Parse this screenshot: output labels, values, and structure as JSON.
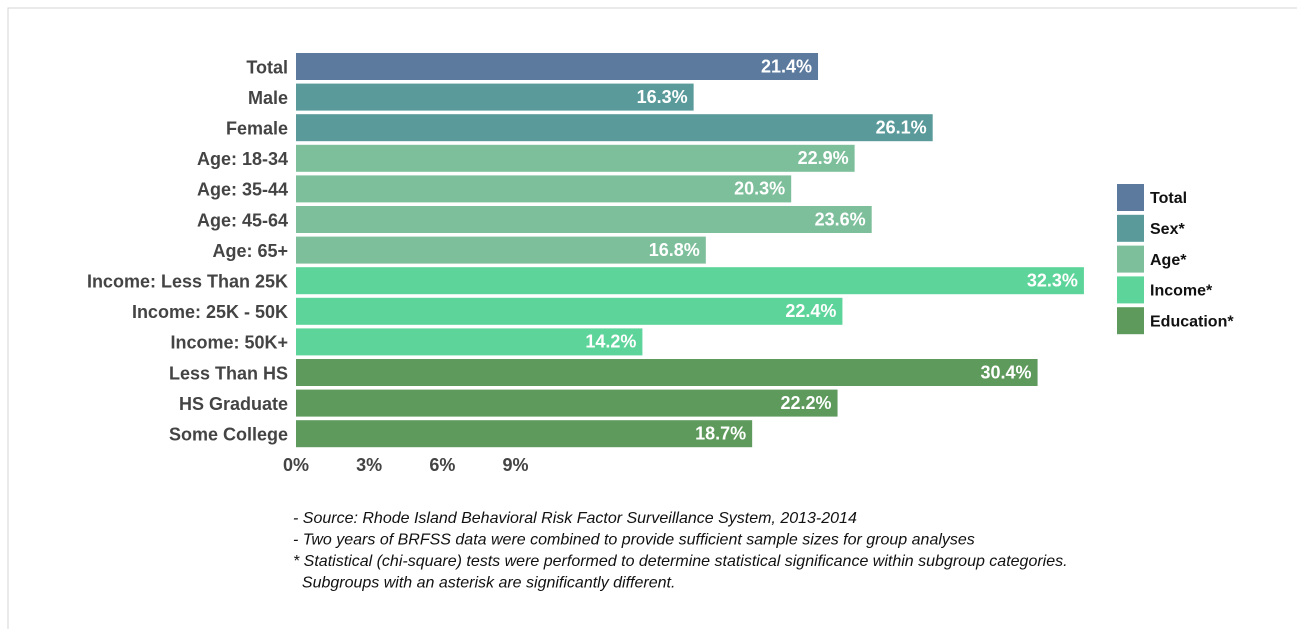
{
  "chart_data": {
    "type": "bar",
    "orientation": "horizontal",
    "categories": [
      "Total",
      "Male",
      "Female",
      "Age: 18-34",
      "Age: 35-44",
      "Age: 45-64",
      "Age: 65+",
      "Income: Less Than 25K",
      "Income: 25K - 50K",
      "Income: 50K+",
      "Less Than HS",
      "HS Graduate",
      "Some College"
    ],
    "series": [
      {
        "name": "Total",
        "color": "#5b7a9e",
        "values": [
          21.4,
          null,
          null,
          null,
          null,
          null,
          null,
          null,
          null,
          null,
          null,
          null,
          null
        ],
        "value_labels": [
          "21.4%",
          null,
          null,
          null,
          null,
          null,
          null,
          null,
          null,
          null,
          null,
          null,
          null
        ]
      },
      {
        "name": "Sex*",
        "color": "#5a9a9b",
        "values": [
          null,
          16.3,
          26.1,
          null,
          null,
          null,
          null,
          null,
          null,
          null,
          null,
          null,
          null
        ],
        "value_labels": [
          null,
          "16.3%",
          "26.1%",
          null,
          null,
          null,
          null,
          null,
          null,
          null,
          null,
          null,
          null
        ]
      },
      {
        "name": "Age*",
        "color": "#7ebf9b",
        "values": [
          null,
          null,
          null,
          22.9,
          20.3,
          23.6,
          16.8,
          null,
          null,
          null,
          null,
          null,
          null
        ],
        "value_labels": [
          null,
          null,
          null,
          "22.9%",
          "20.3%",
          "23.6%",
          "16.8%",
          null,
          null,
          null,
          null,
          null,
          null
        ]
      },
      {
        "name": "Income*",
        "color": "#5dd49a",
        "values": [
          null,
          null,
          null,
          null,
          null,
          null,
          null,
          32.3,
          22.4,
          14.2,
          null,
          null,
          null
        ],
        "value_labels": [
          null,
          null,
          null,
          null,
          null,
          null,
          null,
          "32.3%",
          "22.4%",
          "14.2%",
          null,
          null,
          null
        ]
      },
      {
        "name": "Education*",
        "color": "#5e9a5c",
        "values": [
          null,
          null,
          null,
          null,
          null,
          null,
          null,
          null,
          null,
          null,
          30.4,
          22.2,
          18.7
        ],
        "value_labels": [
          null,
          null,
          null,
          null,
          null,
          null,
          null,
          null,
          null,
          null,
          "30.4%",
          "22.2%",
          "18.7%"
        ]
      }
    ],
    "xlim": [
      0,
      33
    ],
    "xticks": [
      {
        "value": 0,
        "label": "0%"
      },
      {
        "value": 3,
        "label": "3%"
      },
      {
        "value": 6,
        "label": "6%"
      },
      {
        "value": 9,
        "label": "9%"
      }
    ],
    "legend": "right",
    "notes": [
      "- Source: Rhode Island Behavioral Risk Factor Surveillance System, 2013-2014",
      "- Two years of BRFSS data were combined to provide sufficient sample sizes for group analyses",
      "* Statistical (chi-square) tests were performed to determine statistical significance within subgroup categories.",
      "  Subgroups with an asterisk are significantly different."
    ]
  }
}
